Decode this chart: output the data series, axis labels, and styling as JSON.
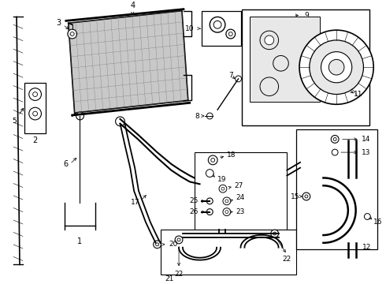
{
  "bg_color": "#ffffff",
  "line_color": "#000000",
  "gray_fill": "#c8c8c8",
  "light_gray": "#e8e8e8"
}
